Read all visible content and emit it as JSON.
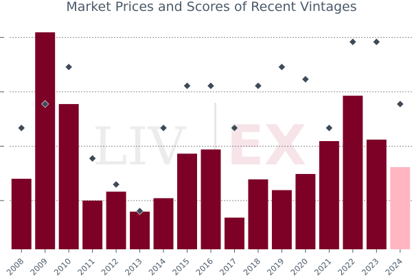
{
  "chart_data": {
    "type": "bar",
    "title": "Market Prices and Scores of Recent Vintages",
    "categories": [
      "2008",
      "2009",
      "2010",
      "2011",
      "2012",
      "2013",
      "2014",
      "2015",
      "2016",
      "2017",
      "2018",
      "2019",
      "2020",
      "2021",
      "2022",
      "2023",
      "2024"
    ],
    "series": [
      {
        "values": [
          18.6,
          67.6,
          43.6,
          11.3,
          14.3,
          7.6,
          12.1,
          27.0,
          28.4,
          5.6,
          18.4,
          14.8,
          20.2,
          31.2,
          46.4,
          31.7,
          22.5
        ],
        "colors": [
          "#7d0027",
          "#7d0027",
          "#7d0027",
          "#7d0027",
          "#7d0027",
          "#7d0027",
          "#7d0027",
          "#7d0027",
          "#7d0027",
          "#7d0027",
          "#7d0027",
          "#7d0027",
          "#7d0027",
          "#7d0027",
          "#7d0027",
          "#7d0027",
          "#ffb6c1"
        ]
      },
      {
        "marker": "diamond",
        "color": "#3d4a58",
        "values": [
          35.6,
          43.6,
          56.0,
          25.4,
          16.7,
          7.8,
          35.6,
          49.7,
          49.7,
          35.6,
          49.7,
          56.0,
          51.9,
          35.6,
          64.4,
          64.4,
          43.6
        ]
      }
    ],
    "ylim": [
      -5,
      72
    ],
    "gridlines_at": [
      11.3,
      29.5,
      47.7,
      65.9
    ],
    "grid": true,
    "watermark": "LIV-EX"
  }
}
